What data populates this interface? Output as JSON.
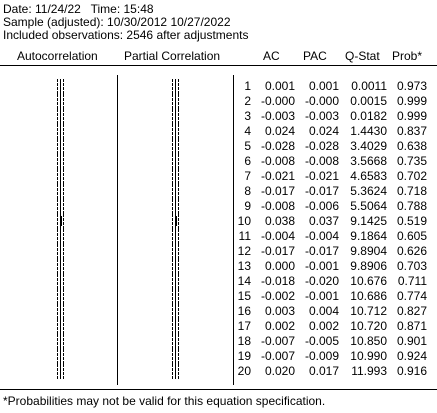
{
  "header": {
    "date_line": "Date: 11/24/22   Time: 15:48",
    "sample_line": "Sample (adjusted): 10/30/2012 10/27/2022",
    "obs_line": "Included observations: 2546 after adjustments"
  },
  "columns": {
    "autocorrelation": "Autocorrelation",
    "partial_correlation": "Partial Correlation",
    "ac": "AC",
    "pac": "PAC",
    "qstat": "Q-Stat",
    "prob": "Prob*"
  },
  "rows": [
    {
      "lag": "1",
      "ac": "0.001",
      "pac": "0.001",
      "q": "0.0011",
      "p": "0.973"
    },
    {
      "lag": "2",
      "ac": "-0.000",
      "pac": "-0.000",
      "q": "0.0015",
      "p": "0.999"
    },
    {
      "lag": "3",
      "ac": "-0.003",
      "pac": "-0.003",
      "q": "0.0182",
      "p": "0.999"
    },
    {
      "lag": "4",
      "ac": "0.024",
      "pac": "0.024",
      "q": "1.4430",
      "p": "0.837"
    },
    {
      "lag": "5",
      "ac": "-0.028",
      "pac": "-0.028",
      "q": "3.4029",
      "p": "0.638"
    },
    {
      "lag": "6",
      "ac": "-0.008",
      "pac": "-0.008",
      "q": "3.5668",
      "p": "0.735"
    },
    {
      "lag": "7",
      "ac": "-0.021",
      "pac": "-0.021",
      "q": "4.6583",
      "p": "0.702"
    },
    {
      "lag": "8",
      "ac": "-0.017",
      "pac": "-0.017",
      "q": "5.3624",
      "p": "0.718"
    },
    {
      "lag": "9",
      "ac": "-0.008",
      "pac": "-0.006",
      "q": "5.5064",
      "p": "0.788"
    },
    {
      "lag": "10",
      "ac": "0.038",
      "pac": "0.037",
      "q": "9.1425",
      "p": "0.519"
    },
    {
      "lag": "11",
      "ac": "-0.004",
      "pac": "-0.004",
      "q": "9.1864",
      "p": "0.605"
    },
    {
      "lag": "12",
      "ac": "-0.017",
      "pac": "-0.017",
      "q": "9.8904",
      "p": "0.626"
    },
    {
      "lag": "13",
      "ac": "0.000",
      "pac": "-0.001",
      "q": "9.8906",
      "p": "0.703"
    },
    {
      "lag": "14",
      "ac": "-0.018",
      "pac": "-0.020",
      "q": "10.676",
      "p": "0.711"
    },
    {
      "lag": "15",
      "ac": "-0.002",
      "pac": "-0.001",
      "q": "10.686",
      "p": "0.774"
    },
    {
      "lag": "16",
      "ac": "0.003",
      "pac": "0.004",
      "q": "10.712",
      "p": "0.827"
    },
    {
      "lag": "17",
      "ac": "0.002",
      "pac": "0.002",
      "q": "10.720",
      "p": "0.871"
    },
    {
      "lag": "18",
      "ac": "-0.007",
      "pac": "-0.005",
      "q": "10.850",
      "p": "0.901"
    },
    {
      "lag": "19",
      "ac": "-0.007",
      "pac": "-0.009",
      "q": "10.990",
      "p": "0.924"
    },
    {
      "lag": "20",
      "ac": "0.020",
      "pac": "0.017",
      "q": "11.993",
      "p": "0.916"
    }
  ],
  "footnote": "*Probabilities may not be valid for this equation specification."
}
